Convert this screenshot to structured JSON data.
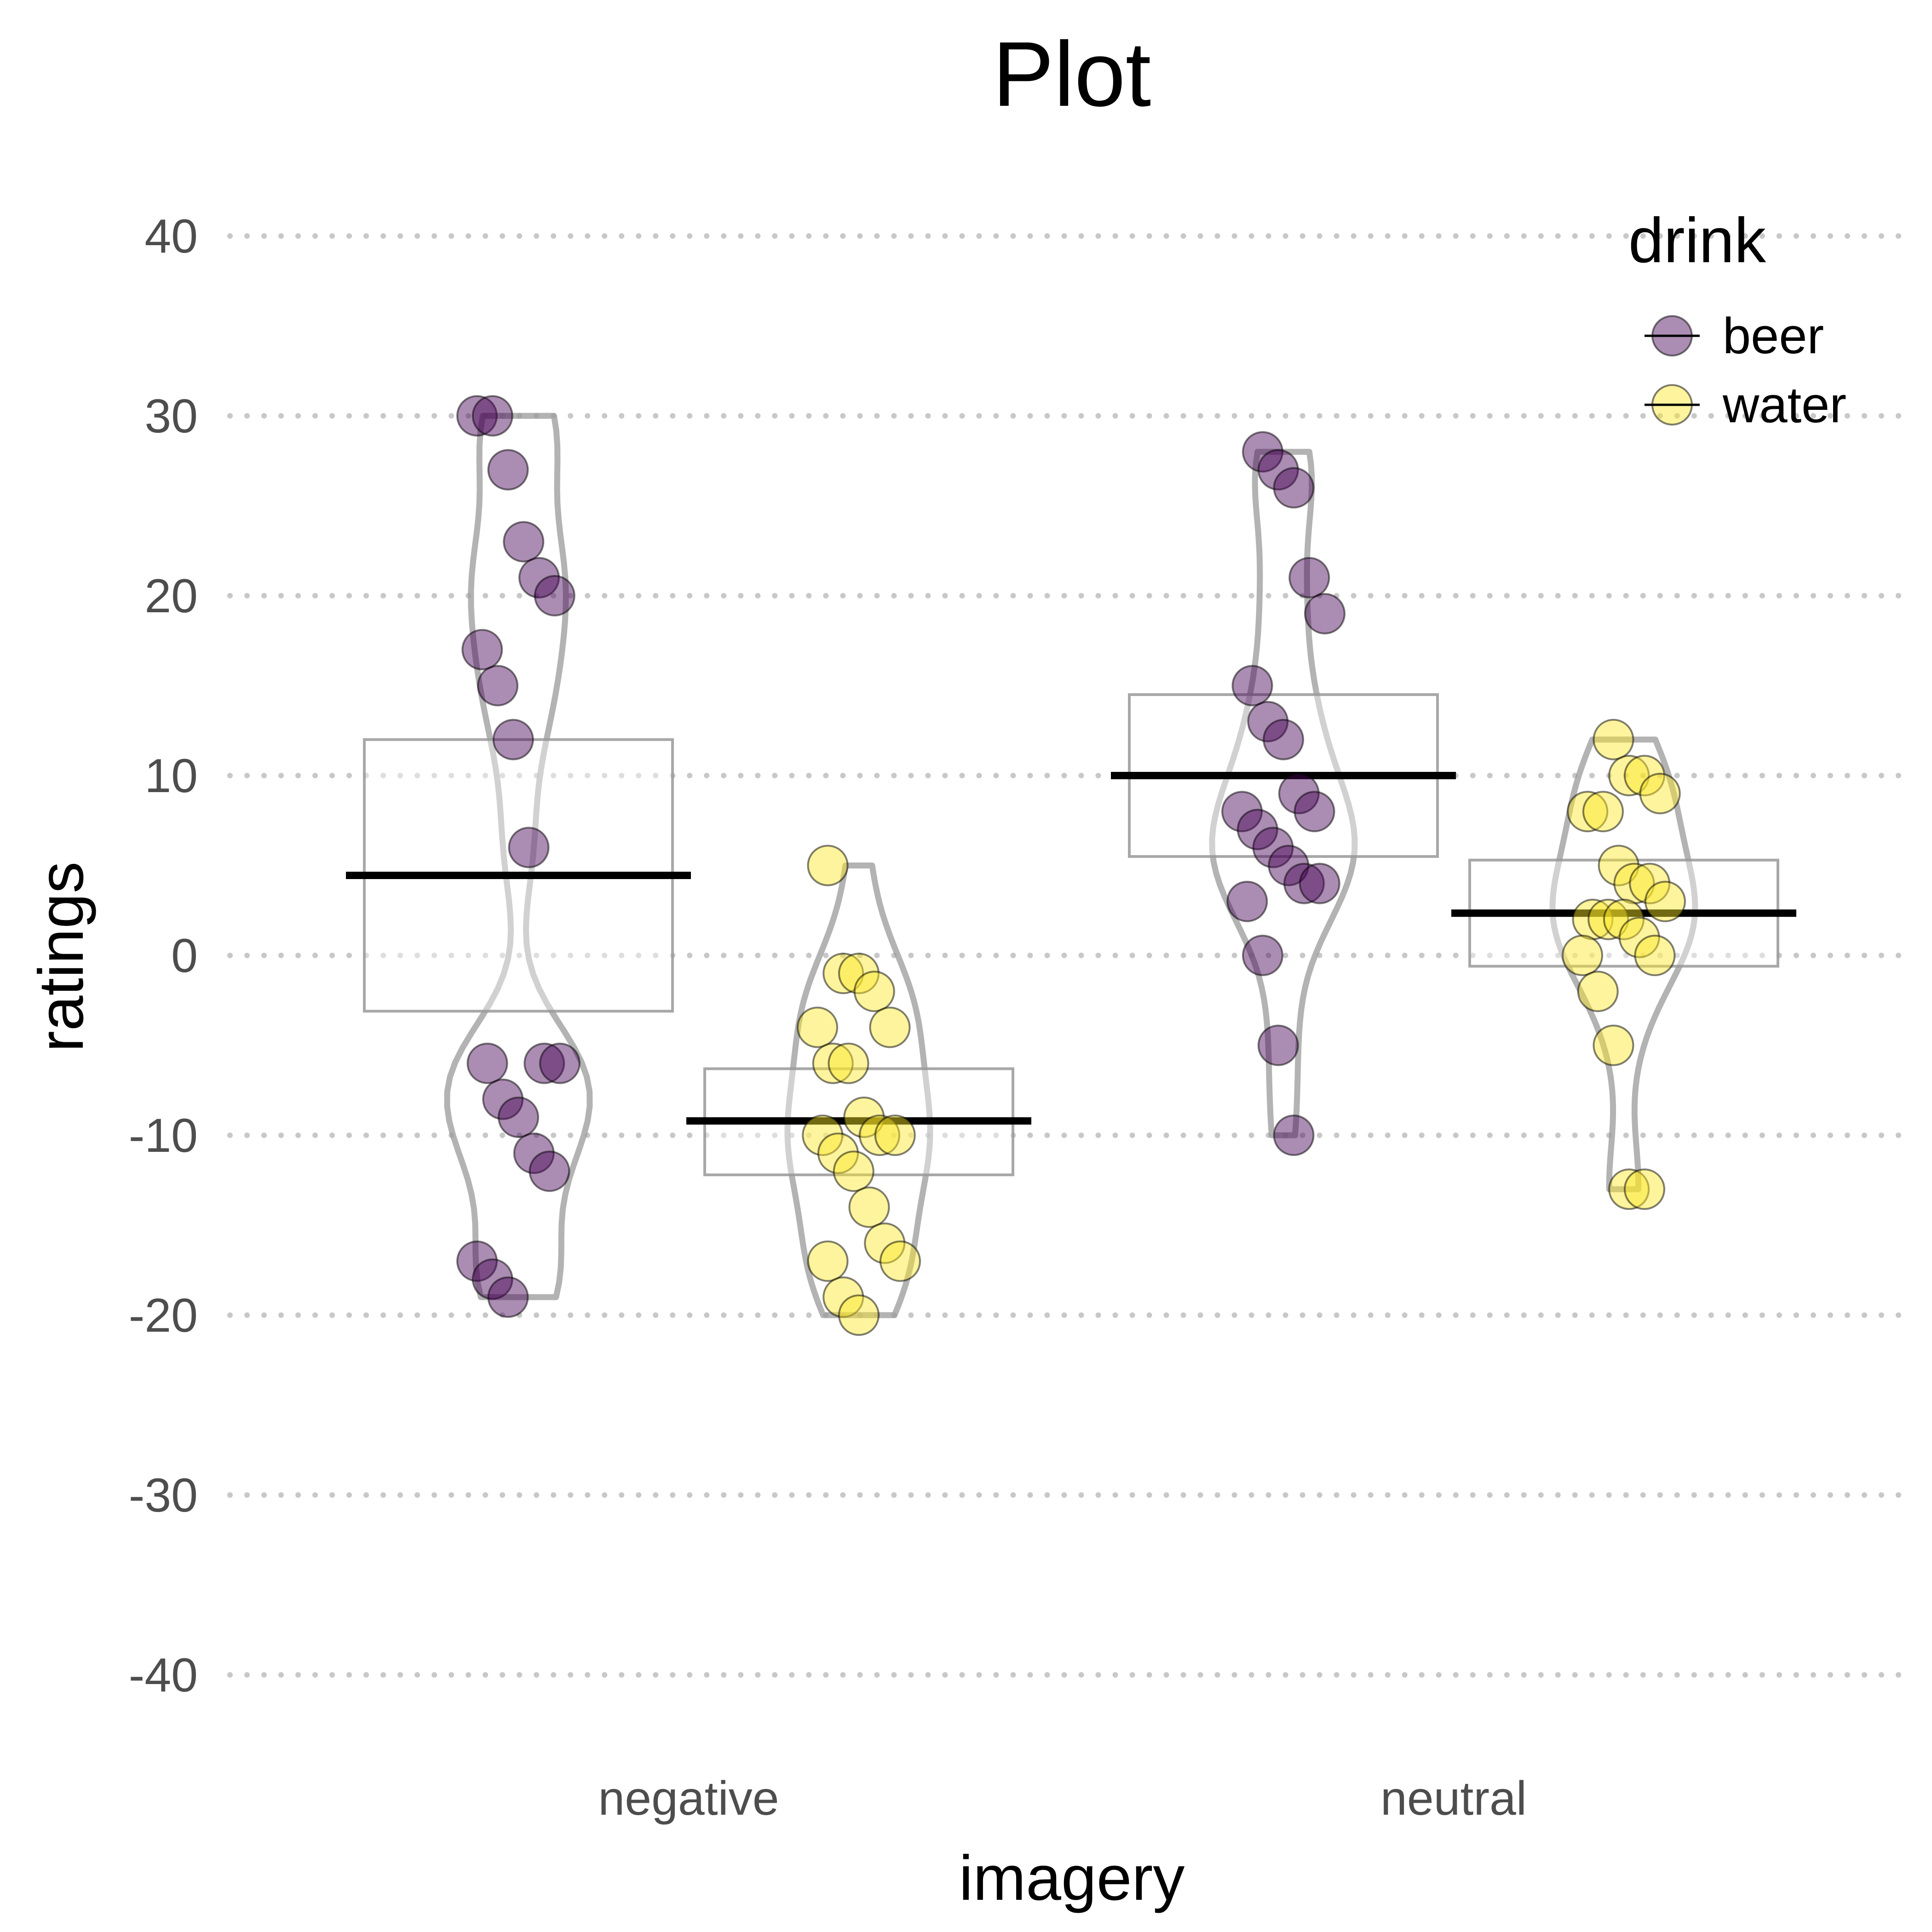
{
  "chart_data": {
    "type": "violin",
    "title": "Plot",
    "xlabel": "imagery",
    "ylabel": "ratings",
    "categories": [
      "negative",
      "neutral"
    ],
    "ylim": [
      -45,
      45
    ],
    "yticks": [
      40,
      30,
      20,
      10,
      0,
      -10,
      -20,
      -30,
      -40
    ],
    "ytick_labels": [
      "40",
      "30",
      "20",
      "10",
      "0",
      "-10",
      "-20",
      "-30",
      "-40"
    ],
    "grid": "horizontal dotted",
    "legend": {
      "title": "drink",
      "position": "top-right",
      "entries": [
        "beer",
        "water"
      ]
    },
    "colors": {
      "beer": "#440154",
      "water": "#fde725",
      "violin": "#999999",
      "mean": "#000000"
    },
    "groups": [
      {
        "category": "negative",
        "drink": "beer",
        "values": [
          30,
          30,
          27,
          23,
          21,
          20,
          17,
          15,
          12,
          6,
          -6,
          -6,
          -6,
          -8,
          -9,
          -11,
          -12,
          -17,
          -18,
          -19
        ],
        "mean": 4.45,
        "ci": [
          -3.1,
          12.0
        ],
        "range": [
          -19,
          30
        ]
      },
      {
        "category": "negative",
        "drink": "water",
        "values": [
          5,
          -1,
          -1,
          -2,
          -4,
          -4,
          -6,
          -6,
          -9,
          -10,
          -10,
          -10,
          -11,
          -12,
          -14,
          -16,
          -17,
          -17,
          -19,
          -20
        ],
        "mean": -9.2,
        "ci": [
          -12.2,
          -6.3
        ],
        "range": [
          -20,
          5
        ]
      },
      {
        "category": "neutral",
        "drink": "beer",
        "values": [
          28,
          27,
          26,
          21,
          19,
          15,
          13,
          12,
          9,
          8,
          8,
          7,
          6,
          5,
          4,
          4,
          3,
          0,
          -5,
          -10
        ],
        "mean": 10.0,
        "ci": [
          5.5,
          14.5
        ],
        "range": [
          -10,
          28
        ]
      },
      {
        "category": "neutral",
        "drink": "water",
        "values": [
          12,
          10,
          10,
          9,
          8,
          8,
          5,
          4,
          4,
          3,
          2,
          2,
          2,
          1,
          0,
          0,
          -2,
          -5,
          -13,
          -13
        ],
        "mean": 2.35,
        "ci": [
          -0.6,
          5.3
        ],
        "range": [
          -13,
          12
        ]
      }
    ]
  }
}
